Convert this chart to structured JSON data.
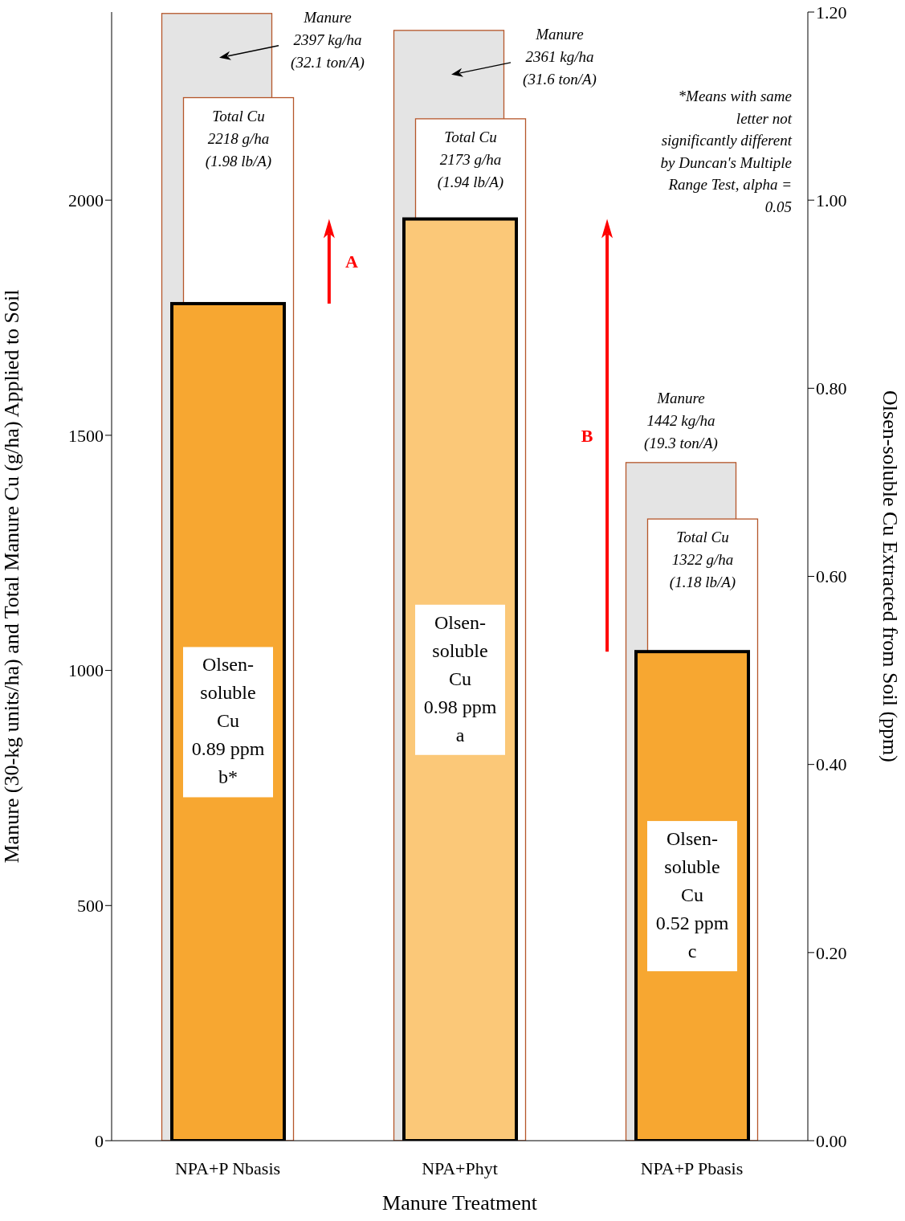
{
  "chart_data": {
    "type": "bar",
    "xlabel": "Manure Treatment",
    "ylabel": "Manure (30-kg units/ha) and Total Manure Cu (g/ha) Applied to Soil",
    "y2label": "Olsen-soluble Cu Extracted from Soil (ppm)",
    "categories": [
      "NPA+P Nbasis",
      "NPA+Phyt",
      "NPA+P Pbasis"
    ],
    "series": [
      {
        "name": "Manure",
        "color": "#e4e4e4",
        "values": [
          2397,
          2361,
          1442
        ],
        "value_labels": [
          "2397 kg/ha\n(32.1 ton/A)",
          "2361 kg/ha\n(31.6 ton/A)",
          "1442 kg/ha\n(19.3 ton/A)"
        ]
      },
      {
        "name": "Total Cu",
        "color": "#ffffff",
        "values": [
          2218,
          2173,
          1322
        ],
        "value_labels": [
          "2218 g/ha\n(1.98 lb/A)",
          "2173 g/ha\n(1.94 lb/A)",
          "1322 g/ha\n(1.18 lb/A)"
        ]
      },
      {
        "name": "Olsen-soluble Cu",
        "axis": "y2",
        "colors": [
          "#f7a731",
          "#fbc878",
          "#f7a731"
        ],
        "values": [
          0.89,
          0.98,
          0.52
        ],
        "value_labels": [
          "0.89 ppm\nb*",
          "0.98 ppm\na",
          "0.52 ppm\nc"
        ]
      }
    ],
    "ylim": [
      0,
      2400
    ],
    "yticks": [
      0,
      500,
      1000,
      1500,
      2000
    ],
    "y2lim": [
      0,
      1.2
    ],
    "y2ticks": [
      {
        "value": 0,
        "label": "0.00"
      },
      {
        "value": 0.2,
        "label": "0.20"
      },
      {
        "value": 0.4,
        "label": "0.40"
      },
      {
        "value": 0.6,
        "label": "0.60"
      },
      {
        "value": 0.8,
        "label": "0.80"
      },
      {
        "value": 1,
        "label": "1.00"
      },
      {
        "value": 1.2,
        "label": "1.20"
      }
    ],
    "annotations": [
      "A",
      "B",
      "*Means with same letter not significantly different by Duncan's Multiple Range Test, alpha = 0.05"
    ],
    "grid": false
  }
}
